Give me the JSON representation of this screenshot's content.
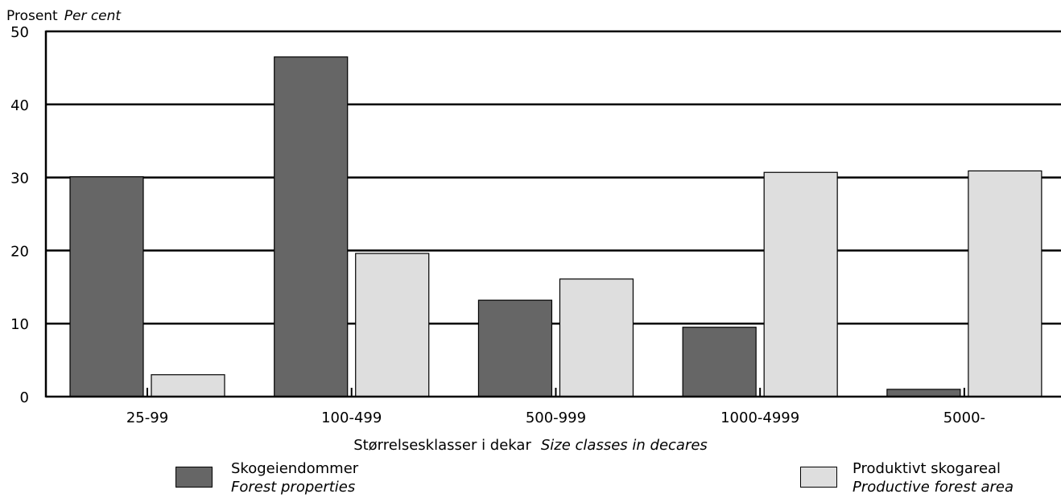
{
  "colors": {
    "dark": "#666666",
    "light": "#dedede",
    "line": "#000000"
  },
  "chart_data": {
    "type": "bar",
    "ylabel": "Prosent",
    "ylabel_en": "Per cent",
    "xlabel": "Størrelsesklasser i dekar",
    "xlabel_en": "Size classes in decares",
    "ylim": [
      0,
      50
    ],
    "yticks": [
      0,
      10,
      20,
      30,
      40,
      50
    ],
    "grid": true,
    "legend_placement": "bottom",
    "categories": [
      "25-99",
      "100-499",
      "500-999",
      "1000-4999",
      "5000-"
    ],
    "series": [
      {
        "name": "Skogeiendommer",
        "name_en": "Forest properties",
        "color": "#666666",
        "values": [
          30.1,
          46.5,
          13.2,
          9.5,
          1.0
        ]
      },
      {
        "name": "Produktivt skogareal",
        "name_en": "Productive forest area",
        "color": "#dedede",
        "values": [
          3.0,
          19.6,
          16.1,
          30.7,
          30.9
        ]
      }
    ]
  }
}
